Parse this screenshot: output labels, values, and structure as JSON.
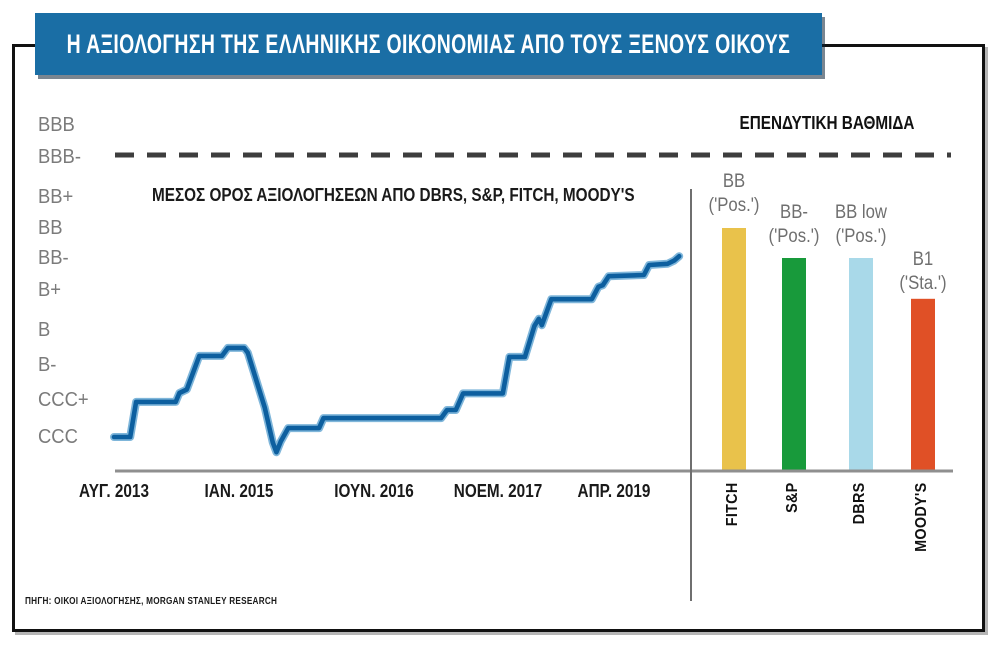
{
  "title": "Η ΑΞΙΟΛΟΓΗΣΗ ΤΗΣ ΕΛΛΗΝΙΚΗΣ ΟΙΚΟΝΟΜΙΑΣ ΑΠΟ ΤΟΥΣ ΞΕΝΟΥΣ ΟΙΚΟΥΣ",
  "source_note": "ΠΗΓΗ: ΟΙΚΟΙ ΑΞΙΟΛΟΓΗΣΗΣ, MORGAN STANLEY RESEARCH",
  "investment_grade": {
    "label": "ΕΠΕΝΔΥΤΙΚΗ ΒΑΘΜΙΔΑ",
    "threshold_rating": "BBB-"
  },
  "colors": {
    "ribbon_blue": "#1a6ea5",
    "line_blue": "#0d5f9f",
    "line_halo": "#69a9d4",
    "dashed_gray": "#3d3d3d",
    "axis_gray": "#8f8f8f"
  },
  "chart_data": [
    {
      "type": "line",
      "title": "ΜΕΣΟΣ ΟΡΟΣ ΑΞΙΟΛΟΓΗΣΕΩΝ ΑΠΟ DBRS, S&P, FITCH, MOODY'S",
      "y_axis_labels": [
        "CCC",
        "CCC+",
        "B-",
        "B",
        "B+",
        "BB-",
        "BB",
        "BB+",
        "BBB-",
        "BBB"
      ],
      "x_tick_labels": [
        "ΑΥΓ. 2013",
        "ΙΑΝ. 2015",
        "ΙΟΥΝ. 2016",
        "ΝΟΕΜ. 2017",
        "ΑΠΡ. 2019"
      ],
      "x_unit": "months since ΑΥΓ. 2013",
      "x_ticks_months": [
        0,
        17,
        34,
        51,
        68
      ],
      "y_unit": "rating scale index (CCC=0, CCC+=1, B-=2, B=3, B+=4, BB-=5, BB=6, BB+=7, BBB-=8, BBB=9)",
      "investment_grade_line_at": "BBB-",
      "line_color": "#0d5f9f",
      "points": [
        [
          0,
          0
        ],
        [
          2.2,
          0
        ],
        [
          3.0,
          0.95
        ],
        [
          8.4,
          0.95
        ],
        [
          8.9,
          1.2
        ],
        [
          9.9,
          1.3
        ],
        [
          11.6,
          2.26
        ],
        [
          14.7,
          2.26
        ],
        [
          15.5,
          2.49
        ],
        [
          17.7,
          2.49
        ],
        [
          18.2,
          2.35
        ],
        [
          20.5,
          0.8
        ],
        [
          21.6,
          -0.15
        ],
        [
          22.1,
          -0.41
        ],
        [
          22.7,
          -0.12
        ],
        [
          23.7,
          0.24
        ],
        [
          27.9,
          0.24
        ],
        [
          28.5,
          0.51
        ],
        [
          44.5,
          0.51
        ],
        [
          45.3,
          0.73
        ],
        [
          46.5,
          0.73
        ],
        [
          47.5,
          1.19
        ],
        [
          52.9,
          1.19
        ],
        [
          53.8,
          2.23
        ],
        [
          55.9,
          2.23
        ],
        [
          57.2,
          3.1
        ],
        [
          57.8,
          3.28
        ],
        [
          58.2,
          3.12
        ],
        [
          59.5,
          3.77
        ],
        [
          65.0,
          3.77
        ],
        [
          65.9,
          4.1
        ],
        [
          66.5,
          4.15
        ],
        [
          67.3,
          4.43
        ],
        [
          72.1,
          4.47
        ],
        [
          72.8,
          4.78
        ],
        [
          75.3,
          4.82
        ],
        [
          76.2,
          4.92
        ],
        [
          76.9,
          5.06
        ]
      ]
    },
    {
      "type": "bar",
      "categories": [
        "FITCH",
        "S&P",
        "DBRS",
        "MOODY'S"
      ],
      "ratings": [
        "BB",
        "BB-",
        "BB low",
        "B1"
      ],
      "outlooks": [
        "('Pos.')",
        "('Pos.')",
        "('Pos.')",
        "('Sta.')"
      ],
      "values": [
        6,
        5,
        5,
        3.78
      ],
      "colors": [
        "#e9c24b",
        "#189a3b",
        "#a9d9e9",
        "#e05026"
      ]
    }
  ]
}
